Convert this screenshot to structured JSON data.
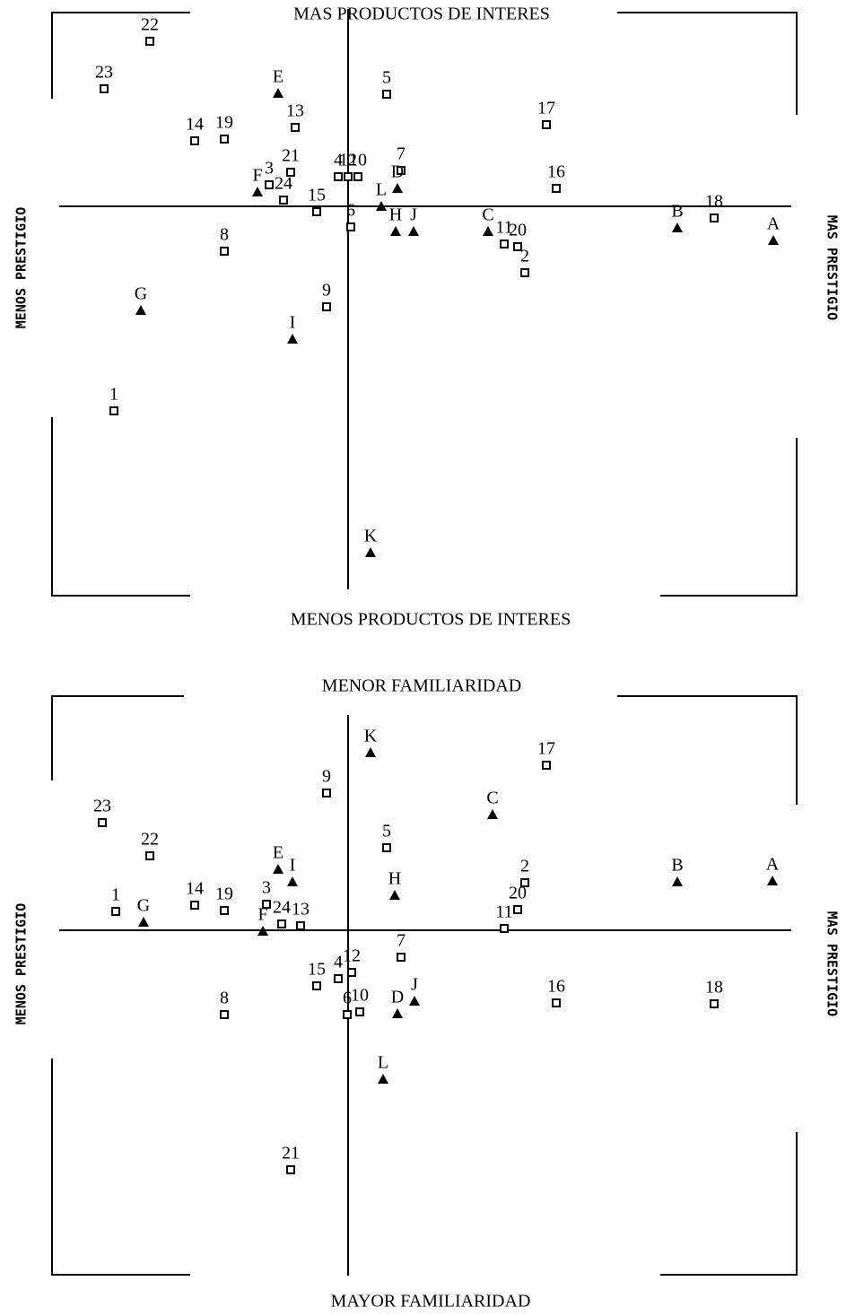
{
  "chart_data": [
    {
      "type": "scatter",
      "axis_labels": {
        "top": "MAS PRODUCTOS DE INTERES",
        "bottom": "MENOS PRODUCTOS DE INTERES",
        "left": "MENOS PRESTIGIO",
        "right": "MAS PRESTIGIO"
      },
      "xlim": [
        -32.2,
        49.4
      ],
      "ylim": [
        -42.7,
        22
      ],
      "series": [
        {
          "marker": "square",
          "color": "#000000",
          "labels": [
            "22",
            "23",
            "14",
            "19",
            "13",
            "5",
            "17",
            "16",
            "3",
            "21",
            "24",
            "4",
            "12",
            "10",
            "7",
            "15",
            "6",
            "8",
            "11",
            "20",
            "2",
            "18",
            "9",
            "1"
          ],
          "x": [
            -22.1,
            -27.2,
            -17.1,
            -13.8,
            -5.9,
            4.3,
            22.1,
            23.2,
            -8.8,
            -6.4,
            -7.2,
            -1.1,
            0,
            1.1,
            5.9,
            -3.5,
            0.3,
            -13.8,
            17.4,
            18.9,
            19.7,
            40.8,
            -2.4,
            -26.1
          ],
          "y": [
            18.4,
            13.1,
            7.3,
            7.5,
            8.8,
            12.5,
            9.1,
            2.0,
            2.4,
            3.8,
            0.7,
            3.3,
            3.3,
            3.3,
            4.0,
            -0.6,
            -2.3,
            -5.0,
            -4.2,
            -4.5,
            -7.4,
            -1.3,
            -11.2,
            -22.8
          ]
        },
        {
          "marker": "triangle",
          "color": "#000000",
          "labels": [
            "E",
            "F",
            "D",
            "L",
            "H",
            "J",
            "C",
            "B",
            "A",
            "G",
            "I",
            "K"
          ],
          "x": [
            -7.8,
            -10.1,
            5.5,
            3.7,
            5.3,
            7.3,
            15.6,
            36.7,
            47.4,
            -23.1,
            -6.2,
            2.5
          ],
          "y": [
            12.6,
            1.6,
            2.0,
            0,
            -2.8,
            -2.8,
            -2.8,
            -2.4,
            -3.8,
            -11.6,
            -14.8,
            -38.6
          ]
        }
      ]
    },
    {
      "type": "scatter",
      "axis_labels": {
        "top": "MENOR FAMILIARIDAD",
        "bottom": "MAYOR FAMILIARIDAD",
        "left": "MENOS PRESTIGIO",
        "right": "MAS PRESTIGIO"
      },
      "xlim": [
        -32.2,
        49.4
      ],
      "ylim": [
        -38.5,
        24
      ],
      "series": [
        {
          "marker": "square",
          "color": "#000000",
          "labels": [
            "23",
            "22",
            "1",
            "14",
            "19",
            "3",
            "24",
            "13",
            "9",
            "5",
            "17",
            "2",
            "20",
            "11",
            "7",
            "12",
            "4",
            "15",
            "6",
            "10",
            "16",
            "18",
            "8",
            "21"
          ],
          "x": [
            -27.4,
            -22.1,
            -25.9,
            -17.1,
            -13.8,
            -9.1,
            -7.4,
            -5.3,
            -2.4,
            4.3,
            22.1,
            19.7,
            18.9,
            17.4,
            5.9,
            0.4,
            -1.1,
            -3.5,
            -0.1,
            1.3,
            23.2,
            40.8,
            -13.8,
            -6.4
          ],
          "y": [
            12.0,
            8.3,
            2.1,
            2.8,
            2.2,
            2.9,
            0.7,
            0.5,
            15.3,
            9.2,
            18.4,
            5.3,
            2.3,
            0.2,
            -3.0,
            -4.7,
            -5.4,
            -6.2,
            -9.4,
            -9.1,
            -8.1,
            -8.2,
            -9.4,
            -26.7
          ]
        },
        {
          "marker": "triangle",
          "color": "#000000",
          "labels": [
            "K",
            "C",
            "E",
            "I",
            "H",
            "B",
            "A",
            "G",
            "F",
            "J",
            "D",
            "L"
          ],
          "x": [
            2.5,
            16.1,
            -7.8,
            -6.2,
            5.2,
            36.7,
            47.3,
            -22.8,
            -9.5,
            7.4,
            5.5,
            3.9
          ],
          "y": [
            19.8,
            12.9,
            6.8,
            5.4,
            3.9,
            5.4,
            5.5,
            0.9,
            -0.1,
            -7.9,
            -9.3,
            -16.6
          ]
        }
      ]
    }
  ]
}
